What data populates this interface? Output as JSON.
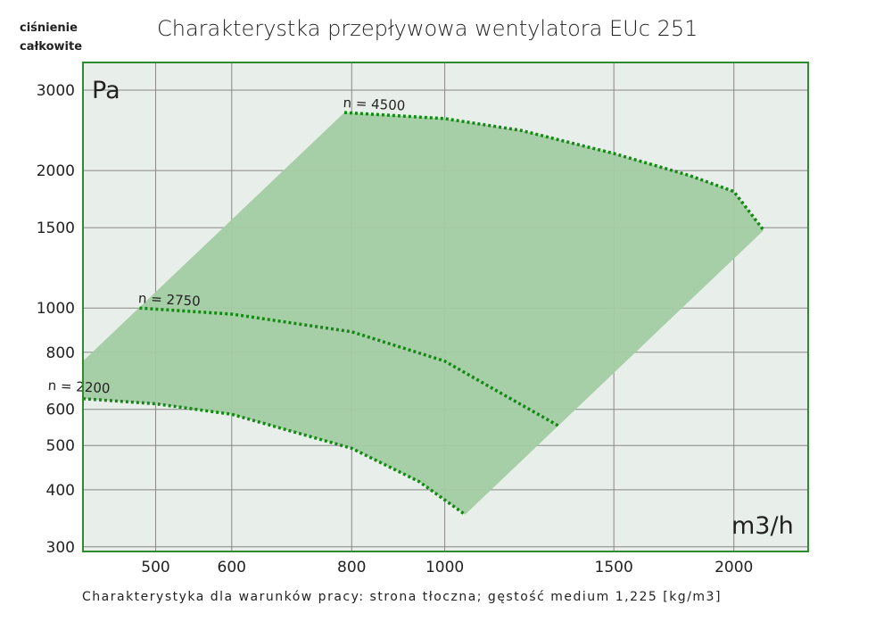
{
  "chart_data": {
    "type": "line",
    "title": "Charakterystka przepływowa wentylatora EUc 251",
    "ylabel": [
      "ciśnienie",
      "całkowite"
    ],
    "y_unit": "Pa",
    "x_unit": "m3/h",
    "xscale": "log",
    "yscale": "log",
    "xlim": [
      420,
      2390
    ],
    "ylim": [
      293,
      3450
    ],
    "x_ticks": [
      500,
      600,
      800,
      1000,
      1500,
      2000
    ],
    "y_ticks": [
      300,
      400,
      500,
      600,
      800,
      1000,
      1500,
      2000,
      3000
    ],
    "grid": true,
    "footer": "Charakterystyka dla warunków pracy: strona tłoczna; gęstość medium 1,225 [kg/m3]",
    "operating_area": [
      [
        420,
        765
      ],
      [
        786,
        2680
      ]
    ],
    "series": [
      {
        "name": "n = 4500",
        "points": [
          [
            786,
            2680
          ],
          [
            1000,
            2600
          ],
          [
            1200,
            2450
          ],
          [
            1500,
            2180
          ],
          [
            1800,
            1950
          ],
          [
            2000,
            1800
          ],
          [
            2148,
            1480
          ]
        ]
      },
      {
        "name": "n = 2750",
        "points": [
          [
            481,
            1000
          ],
          [
            600,
            970
          ],
          [
            800,
            887
          ],
          [
            1000,
            765
          ],
          [
            1141,
            653
          ],
          [
            1316,
            551
          ]
        ]
      },
      {
        "name": "n = 2200",
        "points": [
          [
            420,
            633
          ],
          [
            500,
            617
          ],
          [
            600,
            585
          ],
          [
            800,
            493
          ],
          [
            940,
            417
          ],
          [
            1050,
            353
          ]
        ]
      }
    ],
    "colors": {
      "area": "#a3cca3",
      "plot_bg": "#e8eee9",
      "border": "#2e8b2e",
      "curve": "#138a13",
      "grid": "#888888"
    }
  }
}
